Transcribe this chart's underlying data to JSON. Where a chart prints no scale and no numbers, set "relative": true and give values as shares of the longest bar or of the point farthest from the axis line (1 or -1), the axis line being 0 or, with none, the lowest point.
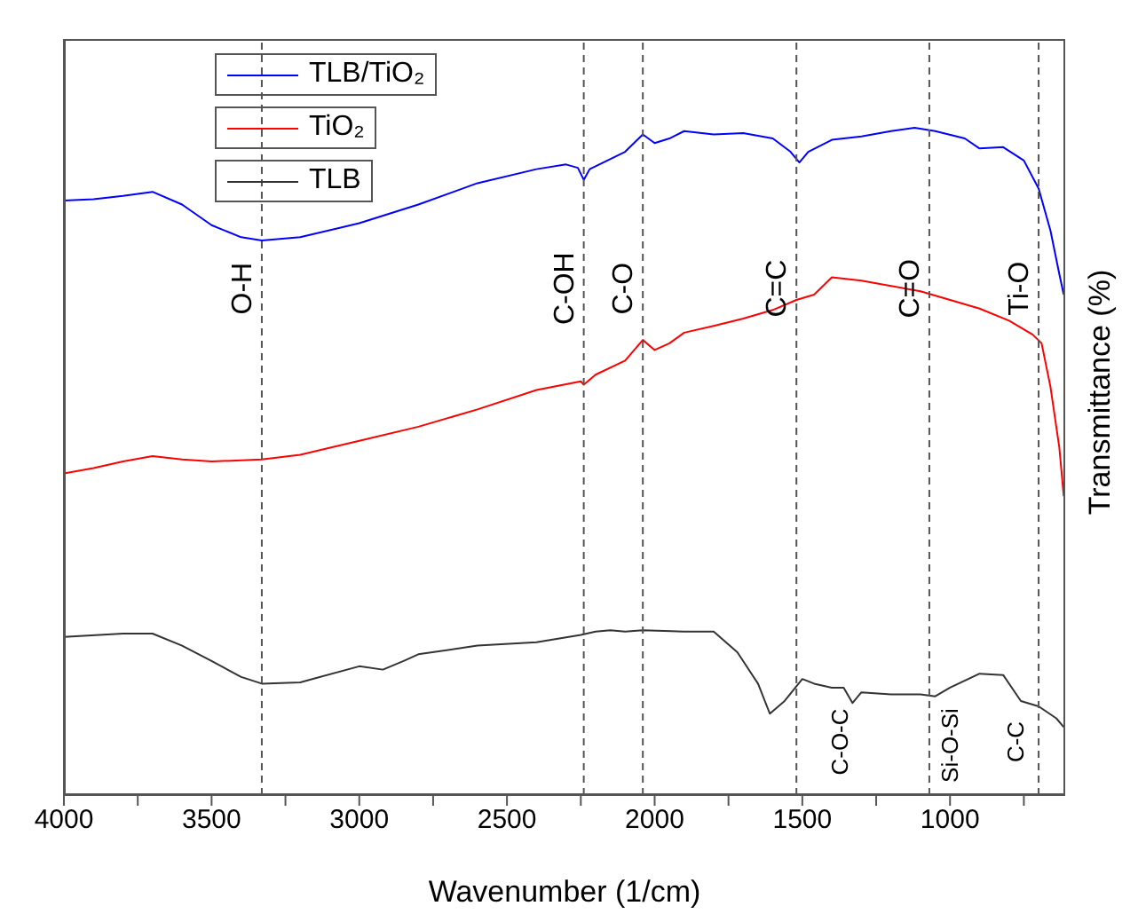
{
  "chart_data": {
    "type": "line",
    "relative": true,
    "xlabel": "Wavenumber (1/cm)",
    "ylabel": "Transmittance (%)",
    "xlim": [
      4000,
      610
    ],
    "xticks": [
      4000,
      {
        "value": 3750,
        "label": null
      },
      3500,
      {
        "value": 3250,
        "label": null
      },
      3000,
      {
        "value": 2750,
        "label": null
      },
      2500,
      {
        "value": 2250,
        "label": null
      },
      2000,
      {
        "value": 1750,
        "label": null
      },
      1500,
      {
        "value": 1250,
        "label": null
      },
      1000,
      {
        "value": 750,
        "label": null
      }
    ],
    "legend": "top left",
    "marker": "none",
    "line_style": "solid",
    "series": [
      {
        "name": "TLB/TiO₂",
        "color": "#0000ff",
        "x": [
          4000,
          3900,
          3800,
          3700,
          3600,
          3500,
          3400,
          3330,
          3200,
          3000,
          2800,
          2600,
          2400,
          2300,
          2260,
          2240,
          2220,
          2100,
          2040,
          2000,
          1950,
          1900,
          1800,
          1700,
          1600,
          1540,
          1510,
          1480,
          1400,
          1300,
          1200,
          1120,
          1050,
          950,
          900,
          820,
          750,
          700,
          660,
          630,
          615
        ],
        "values": [
          0.891,
          0.893,
          0.898,
          0.904,
          0.885,
          0.854,
          0.836,
          0.831,
          0.836,
          0.857,
          0.885,
          0.917,
          0.938,
          0.945,
          0.94,
          0.922,
          0.938,
          0.964,
          0.99,
          0.977,
          0.984,
          0.995,
          0.99,
          0.992,
          0.984,
          0.964,
          0.948,
          0.964,
          0.982,
          0.987,
          0.995,
          1,
          0.995,
          0.984,
          0.969,
          0.971,
          0.951,
          0.909,
          0.846,
          0.781,
          0.75
        ]
      },
      {
        "name": "TiO₂",
        "color": "#ff0000",
        "x": [
          4000,
          3900,
          3800,
          3700,
          3600,
          3500,
          3330,
          3200,
          3000,
          2800,
          2600,
          2400,
          2250,
          2240,
          2200,
          2100,
          2040,
          2000,
          1950,
          1900,
          1800,
          1700,
          1600,
          1520,
          1460,
          1400,
          1300,
          1200,
          1100,
          1000,
          900,
          800,
          720,
          690,
          660,
          630,
          615
        ],
        "values": [
          0.482,
          0.49,
          0.5,
          0.508,
          0.503,
          0.5,
          0.503,
          0.51,
          0.531,
          0.552,
          0.578,
          0.607,
          0.62,
          0.615,
          0.63,
          0.651,
          0.682,
          0.667,
          0.677,
          0.693,
          0.703,
          0.714,
          0.727,
          0.742,
          0.75,
          0.776,
          0.771,
          0.763,
          0.755,
          0.742,
          0.729,
          0.711,
          0.69,
          0.677,
          0.612,
          0.521,
          0.448
        ]
      },
      {
        "name": "TLB",
        "color": "#333333",
        "x": [
          4000,
          3800,
          3700,
          3600,
          3500,
          3400,
          3330,
          3200,
          3000,
          2920,
          2850,
          2800,
          2600,
          2400,
          2250,
          2200,
          2150,
          2100,
          2040,
          1900,
          1800,
          1720,
          1650,
          1610,
          1560,
          1500,
          1460,
          1400,
          1360,
          1330,
          1300,
          1200,
          1100,
          1050,
          1000,
          900,
          820,
          780,
          760,
          700,
          640,
          615
        ],
        "values": [
          0.237,
          0.242,
          0.242,
          0.224,
          0.201,
          0.177,
          0.167,
          0.169,
          0.193,
          0.188,
          0.201,
          0.211,
          0.224,
          0.229,
          0.24,
          0.245,
          0.247,
          0.245,
          0.247,
          0.245,
          0.245,
          0.214,
          0.167,
          0.122,
          0.141,
          0.174,
          0.167,
          0.161,
          0.161,
          0.138,
          0.154,
          0.151,
          0.151,
          0.148,
          0.161,
          0.182,
          0.18,
          0.154,
          0.141,
          0.133,
          0.115,
          0.102
        ]
      }
    ],
    "ref_lines": [
      {
        "axis": "x",
        "value": 3330,
        "label": "O-H",
        "color": "#555555",
        "line_style": "dashed"
      },
      {
        "axis": "x",
        "value": 2240,
        "label": "C-OH",
        "color": "#555555",
        "line_style": "dashed"
      },
      {
        "axis": "x",
        "value": 2040,
        "label": "C-O",
        "color": "#555555",
        "line_style": "dashed"
      },
      {
        "axis": "x",
        "value": 1520,
        "label": "C=C",
        "color": "#555555",
        "line_style": "dashed"
      },
      {
        "axis": "x",
        "value": 1070,
        "label": "C=O",
        "color": "#555555",
        "line_style": "dashed"
      },
      {
        "axis": "x",
        "value": 700,
        "label": "Ti-O",
        "color": "#555555",
        "line_style": "dashed"
      }
    ],
    "annotations": [
      "C-O-C",
      "Si-O-Si",
      "C-C"
    ]
  }
}
